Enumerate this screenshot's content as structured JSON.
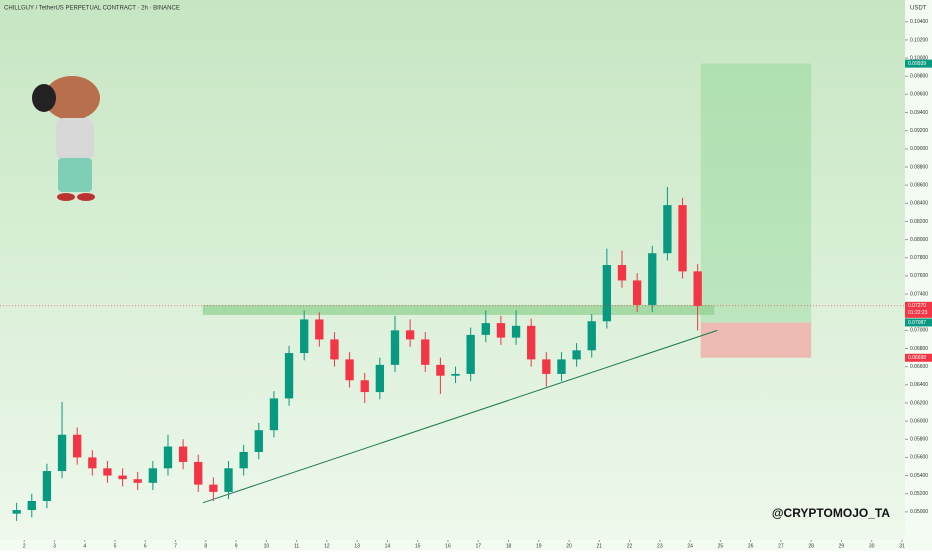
{
  "chart_data": {
    "type": "candlestick",
    "title": "CHILLGUY / TetherUS PERPETUAL CONTRACT · 2h · BINANCE",
    "currency": "USDT",
    "watermark": "@CRYPTOMOJO_TA",
    "up_color": "#089981",
    "down_color": "#f23645",
    "x": [
      1.75,
      2.25,
      2.75,
      3.25,
      3.75,
      4.25,
      4.75,
      5.25,
      5.75,
      6.25,
      6.75,
      7.25,
      7.75,
      8.25,
      8.75,
      9.25,
      9.75,
      10.25,
      10.75,
      11.25,
      11.75,
      12.25,
      12.75,
      13.25,
      13.75,
      14.25,
      14.75,
      15.25,
      15.75,
      16.25,
      16.75,
      17.25,
      17.75,
      18.25,
      18.75,
      19.25,
      19.75,
      20.25,
      20.75,
      21.25,
      21.75,
      22.25,
      22.75,
      23.25,
      23.75,
      24.25
    ],
    "open": [
      0.0498,
      0.0502,
      0.0512,
      0.0545,
      0.0585,
      0.056,
      0.0548,
      0.054,
      0.0536,
      0.0532,
      0.0548,
      0.0572,
      0.0555,
      0.053,
      0.0522,
      0.0548,
      0.0566,
      0.059,
      0.0625,
      0.0675,
      0.0712,
      0.069,
      0.0668,
      0.0645,
      0.0632,
      0.0662,
      0.07,
      0.069,
      0.0662,
      0.065,
      0.0652,
      0.0695,
      0.0708,
      0.0692,
      0.0705,
      0.0668,
      0.0652,
      0.0668,
      0.0678,
      0.071,
      0.0772,
      0.0755,
      0.0728,
      0.0785,
      0.0838,
      0.0765
    ],
    "high": [
      0.051,
      0.052,
      0.0553,
      0.0621,
      0.0593,
      0.0568,
      0.0556,
      0.0548,
      0.0544,
      0.0556,
      0.0585,
      0.058,
      0.0563,
      0.0538,
      0.0556,
      0.0574,
      0.0598,
      0.0633,
      0.0683,
      0.0722,
      0.072,
      0.0698,
      0.0676,
      0.0653,
      0.067,
      0.0716,
      0.0712,
      0.0698,
      0.067,
      0.066,
      0.0703,
      0.0722,
      0.0716,
      0.0722,
      0.0713,
      0.0676,
      0.0676,
      0.0686,
      0.0718,
      0.079,
      0.0788,
      0.0763,
      0.0793,
      0.0858,
      0.0846,
      0.0773
    ],
    "low": [
      0.049,
      0.0494,
      0.0504,
      0.0537,
      0.0552,
      0.054,
      0.0532,
      0.0528,
      0.0524,
      0.0524,
      0.054,
      0.0547,
      0.0522,
      0.0512,
      0.0514,
      0.054,
      0.0558,
      0.0582,
      0.0617,
      0.0667,
      0.0682,
      0.066,
      0.0637,
      0.062,
      0.0624,
      0.0654,
      0.0682,
      0.0654,
      0.063,
      0.0642,
      0.0644,
      0.0687,
      0.0684,
      0.0684,
      0.066,
      0.0638,
      0.0644,
      0.066,
      0.067,
      0.0702,
      0.0747,
      0.072,
      0.072,
      0.0777,
      0.0757,
      0.07
    ],
    "close": [
      0.0502,
      0.0512,
      0.0545,
      0.0585,
      0.056,
      0.0548,
      0.054,
      0.0536,
      0.0532,
      0.0548,
      0.0572,
      0.0555,
      0.053,
      0.0522,
      0.0548,
      0.0566,
      0.059,
      0.0625,
      0.0675,
      0.0712,
      0.069,
      0.0668,
      0.0645,
      0.0632,
      0.0662,
      0.07,
      0.069,
      0.0662,
      0.065,
      0.0652,
      0.0695,
      0.0708,
      0.0692,
      0.0705,
      0.0668,
      0.0652,
      0.0668,
      0.0678,
      0.071,
      0.0772,
      0.0755,
      0.0728,
      0.0785,
      0.0838,
      0.0765,
      0.0727
    ],
    "xlim": [
      1.2,
      31.1
    ],
    "xticks": [
      2,
      3,
      4,
      5,
      6,
      7,
      8,
      9,
      10,
      11,
      12,
      13,
      14,
      15,
      16,
      17,
      18,
      19,
      20,
      21,
      22,
      23,
      24,
      25,
      26,
      27,
      28,
      29,
      30,
      31
    ],
    "ylim": [
      0.0469,
      0.1064
    ],
    "yticks": [
      {
        "value": 0.05,
        "label": "0.05000"
      },
      {
        "value": 0.052,
        "label": "0.05200"
      },
      {
        "value": 0.054,
        "label": "0.05400"
      },
      {
        "value": 0.056,
        "label": "0.05600"
      },
      {
        "value": 0.058,
        "label": "0.05800"
      },
      {
        "value": 0.06,
        "label": "0.06000"
      },
      {
        "value": 0.062,
        "label": "0.06200"
      },
      {
        "value": 0.064,
        "label": "0.06400"
      },
      {
        "value": 0.066,
        "label": "0.06600"
      },
      {
        "value": 0.068,
        "label": "0.06800"
      },
      {
        "value": 0.07,
        "label": "0.07000"
      },
      {
        "value": 0.072,
        "label": "0.07200"
      },
      {
        "value": 0.074,
        "label": "0.07400"
      },
      {
        "value": 0.076,
        "label": "0.07600"
      },
      {
        "value": 0.078,
        "label": "0.07800"
      },
      {
        "value": 0.08,
        "label": "0.08000"
      },
      {
        "value": 0.082,
        "label": "0.08200"
      },
      {
        "value": 0.084,
        "label": "0.08400"
      },
      {
        "value": 0.086,
        "label": "0.08600"
      },
      {
        "value": 0.088,
        "label": "0.08800"
      },
      {
        "value": 0.09,
        "label": "0.09000"
      },
      {
        "value": 0.092,
        "label": "0.09200"
      },
      {
        "value": 0.094,
        "label": "0.09400"
      },
      {
        "value": 0.096,
        "label": "0.09600"
      },
      {
        "value": 0.098,
        "label": "0.09800"
      },
      {
        "value": 0.1,
        "label": "0.10000"
      },
      {
        "value": 0.102,
        "label": "0.10200"
      },
      {
        "value": 0.104,
        "label": "0.10400"
      }
    ],
    "price_labels": [
      {
        "value": 0.09939,
        "label": "0.09939",
        "color": "#089981"
      },
      {
        "value": 0.0727,
        "label": "0.07270",
        "sub": "01:22:23",
        "color": "#f23645"
      },
      {
        "value": 0.07087,
        "label": "0.07087",
        "color": "#089981"
      },
      {
        "value": 0.06698,
        "label": "0.06698",
        "color": "#f23645"
      }
    ],
    "trendline": {
      "x": [
        7.9,
        24.9
      ],
      "y": [
        0.051,
        0.07
      ],
      "color": "#1b7a4a"
    },
    "zone": {
      "x": [
        7.9,
        24.8
      ],
      "y": [
        0.0717,
        0.0728
      ],
      "color": "#8fd08f"
    },
    "position": {
      "x": [
        24.35,
        28.0
      ],
      "target": 0.09939,
      "entry": 0.07087,
      "stop": 0.06698
    }
  }
}
